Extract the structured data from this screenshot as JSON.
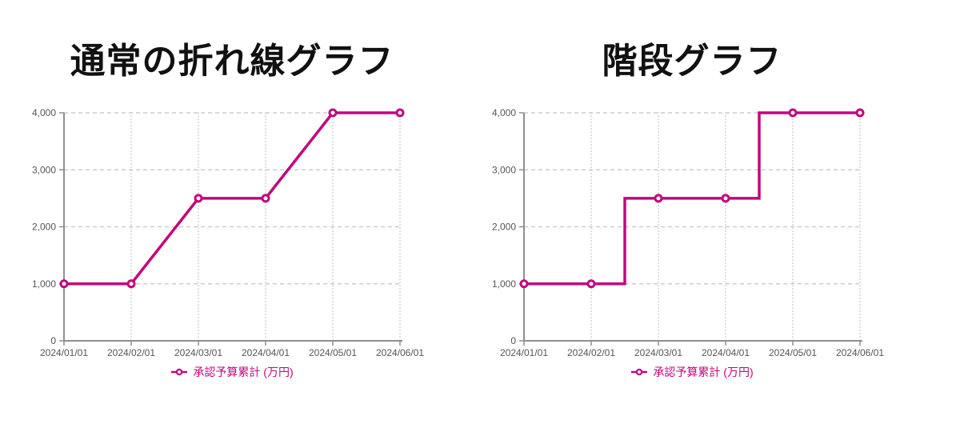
{
  "colors": {
    "series": "#C2077E",
    "grid": "#c2c2c2",
    "axis": "#8f8f8f",
    "tick_label": "#555555",
    "title": "#111111",
    "marker_fill": "#ffffff"
  },
  "chart_data": [
    {
      "type": "line",
      "step_mode": "none",
      "title": "通常の折れ線グラフ",
      "x": [
        "2024/01/01",
        "2024/02/01",
        "2024/03/01",
        "2024/04/01",
        "2024/05/01",
        "2024/06/01"
      ],
      "series": [
        {
          "name": "承認予算累計 (万円)",
          "values": [
            1000,
            1000,
            2500,
            2500,
            4000,
            4000
          ]
        }
      ],
      "xlabel": "",
      "ylabel": "",
      "ylim": [
        0,
        4000
      ],
      "yticks": [
        0,
        1000,
        2000,
        3000,
        4000
      ],
      "grid": true,
      "legend_position": "bottom"
    },
    {
      "type": "line",
      "step_mode": "middle",
      "title": "階段グラフ",
      "x": [
        "2024/01/01",
        "2024/02/01",
        "2024/03/01",
        "2024/04/01",
        "2024/05/01",
        "2024/06/01"
      ],
      "series": [
        {
          "name": "承認予算累計 (万円)",
          "values": [
            1000,
            1000,
            2500,
            2500,
            4000,
            4000
          ]
        }
      ],
      "xlabel": "",
      "ylabel": "",
      "ylim": [
        0,
        4000
      ],
      "yticks": [
        0,
        1000,
        2000,
        3000,
        4000
      ],
      "grid": true,
      "legend_position": "bottom"
    }
  ]
}
